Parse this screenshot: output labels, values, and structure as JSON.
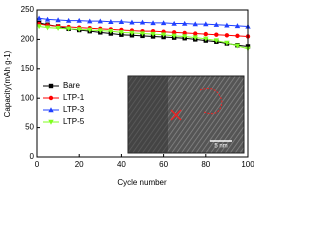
{
  "chart_data": {
    "type": "line",
    "xlabel": "Cycle number",
    "ylabel": "Capacity(mAh g-1)",
    "x": [
      1,
      5,
      10,
      15,
      20,
      25,
      30,
      35,
      40,
      45,
      50,
      55,
      60,
      65,
      70,
      75,
      80,
      85,
      90,
      95,
      100
    ],
    "series": [
      {
        "name": "Bare",
        "color": "#000000",
        "marker": "square",
        "values": [
          228,
          225,
          222,
          218,
          216,
          214,
          212,
          210,
          208,
          207,
          206,
          205,
          204,
          203,
          202,
          200,
          198,
          196,
          193,
          190,
          188
        ]
      },
      {
        "name": "LTP-1",
        "color": "#ff0000",
        "marker": "circle",
        "values": [
          226,
          224,
          222,
          221,
          220,
          219,
          218,
          217,
          216,
          215,
          214,
          214,
          213,
          212,
          211,
          210,
          209,
          208,
          207,
          206,
          205
        ]
      },
      {
        "name": "LTP-3",
        "color": "#2040ff",
        "marker": "triangle",
        "values": [
          236,
          234,
          233,
          232,
          232,
          231,
          231,
          230,
          230,
          229,
          229,
          228,
          228,
          227,
          227,
          226,
          226,
          225,
          224,
          223,
          222
        ]
      },
      {
        "name": "LTP-5",
        "color": "#80ff20",
        "marker": "triangle-down",
        "values": [
          222,
          220,
          219,
          218,
          217,
          216,
          215,
          214,
          212,
          211,
          210,
          209,
          208,
          206,
          205,
          203,
          201,
          198,
          194,
          189,
          184
        ]
      }
    ],
    "xlim": [
      0,
      100
    ],
    "xticks": [
      0,
      20,
      40,
      60,
      80,
      100
    ],
    "ylim": [
      0,
      250
    ],
    "yticks": [
      0,
      50,
      100,
      150,
      200,
      250
    ],
    "legend": "left",
    "inset_annotation": "5 nm"
  }
}
